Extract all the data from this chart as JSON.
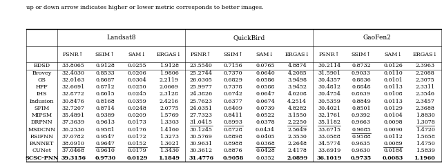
{
  "title_text": "up or down arrow indicates higher or lower metric corresponds to better images.",
  "datasets": [
    "Landsat8",
    "QuickBird",
    "GaoFen2"
  ],
  "methods": [
    "BDSD",
    "Brovey",
    "GS",
    "HPF",
    "IHS",
    "Indusion",
    "SFIM",
    "MIPSM",
    "DRPNN",
    "MSDCNN",
    "RSIFNN",
    "PANNET",
    "CUNet",
    "SCSC-PNN"
  ],
  "data": {
    "Landsat8": {
      "PSNR": [
        33.8065,
        32.403,
        32.0163,
        32.6691,
        32.8772,
        30.8476,
        32.7207,
        35.4891,
        37.3639,
        36.2536,
        37.0782,
        38.091,
        37.0468,
        39.3156
      ],
      "SSIM": [
        0.9128,
        0.8533,
        0.8687,
        0.8712,
        0.8615,
        0.8168,
        0.8714,
        0.9389,
        0.9613,
        0.9581,
        0.9547,
        0.9647,
        0.961,
        0.973
      ],
      "SAM": [
        0.0255,
        0.0206,
        0.0304,
        0.025,
        0.0245,
        0.0359,
        0.0248,
        0.0209,
        0.0173,
        0.0176,
        0.0172,
        0.0152,
        0.0179,
        0.0129
      ],
      "ERGAS": [
        1.9128,
        1.9806,
        2.2119,
        2.0669,
        2.3128,
        2.4216,
        2.0775,
        1.5769,
        1.3303,
        1.416,
        1.3273,
        1.3021,
        1.343,
        1.1849
      ]
    },
    "QuickBird": {
      "PSNR": [
        23.554,
        25.2744,
        26.0305,
        25.9977,
        24.3826,
        25.7623,
        24.0351,
        27.7323,
        31.0415,
        30.1245,
        30.5769,
        30.9631,
        30.3612,
        31.4776
      ],
      "SSIM": [
        0.7156,
        0.737,
        0.6829,
        0.7378,
        0.6742,
        0.6377,
        0.6409,
        0.8411,
        0.8993,
        0.8728,
        0.8898,
        0.8988,
        0.8876,
        0.9058
      ],
      "SAM": [
        0.0765,
        0.064,
        0.0586,
        0.0588,
        0.0647,
        0.0674,
        0.0739,
        0.0522,
        0.0378,
        0.0434,
        0.0405,
        0.0368,
        0.0428,
        0.0352
      ],
      "ERGAS": [
        4.8874,
        4.2085,
        3.9498,
        3.9452,
        4.6208,
        4.2514,
        4.8282,
        3.155,
        2.225,
        2.5649,
        2.353,
        2.2648,
        2.4178,
        2.0899
      ]
    },
    "GaoFen2": {
      "PSNR": [
        30.2114,
        31.5901,
        30.4357,
        30.4812,
        30.4754,
        30.5359,
        30.4021,
        32.1761,
        35.1182,
        33.6715,
        33.0588,
        34.5774,
        33.6919,
        36.1019
      ],
      "SSIM": [
        0.8732,
        0.9033,
        0.8836,
        0.8848,
        0.8639,
        0.8849,
        0.8501,
        0.9392,
        0.9663,
        0.9685,
        0.9588,
        0.9635,
        0.963,
        0.9735
      ],
      "SAM": [
        0.0126,
        0.011,
        0.0101,
        0.0113,
        0.0108,
        0.0113,
        0.0129,
        0.0104,
        0.0098,
        0.009,
        0.0112,
        0.0089,
        0.0184,
        0.0083
      ],
      "ERGAS": [
        2.3963,
        2.2088,
        2.3075,
        2.3311,
        2.3546,
        2.3457,
        2.3688,
        1.883,
        1.3078,
        1.472,
        1.5658,
        1.475,
        1.5839,
        1.196
      ]
    }
  },
  "underline_cells": {
    "Landsat8": {
      "PANNET": [
        "PSNR",
        "SSIM",
        "SAM",
        "ERGAS"
      ]
    },
    "QuickBird": {
      "DRPNN": [
        "PSNR",
        "SSIM",
        "ERGAS"
      ],
      "PANNET": [
        "SAM"
      ]
    },
    "GaoFen2": {
      "DRPNN": [
        "PSNR",
        "ERGAS"
      ],
      "MSDCNN": [
        "SSIM"
      ],
      "PANNET": [
        "SAM"
      ]
    }
  },
  "bold_methods": [
    "SCSC-PNN"
  ],
  "bold_cells_scsc": {
    "Landsat8": [
      "PSNR",
      "SSIM",
      "SAM",
      "ERGAS"
    ],
    "QuickBird": [
      "PSNR",
      "SSIM",
      "ERGAS"
    ],
    "GaoFen2": [
      "PSNR",
      "SSIM",
      "SAM",
      "ERGAS"
    ]
  },
  "title_fontsize": 6.0,
  "header_fontsize": 6.5,
  "data_fontsize": 5.8,
  "lw_thick": 1.0,
  "lw_thin": 0.4
}
